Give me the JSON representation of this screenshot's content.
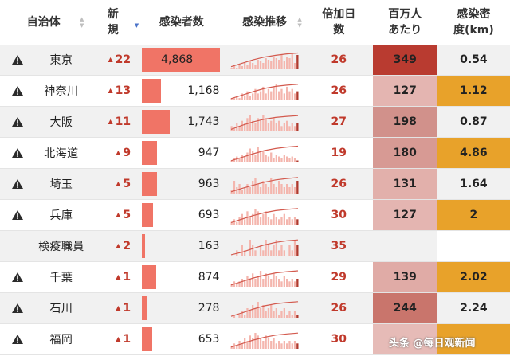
{
  "headers": {
    "pref": "自治体",
    "new_line1": "新",
    "new_line2": "規",
    "cases": "感染者数",
    "trend": "感染推移",
    "doubling_line1": "倍加日",
    "doubling_line2": "数",
    "per_million_line1": "百万人",
    "per_million_line2": "あたり",
    "density_line1": "感染密",
    "density_line2": "度(km)"
  },
  "colors": {
    "bar": "#f07466",
    "new_red": "#c0392b",
    "density_orange": "#e8a22a",
    "spark_bar": "#f4b6ae",
    "spark_line": "#d35a4e"
  },
  "rows": [
    {
      "warn": true,
      "pref": "東京",
      "new": "22",
      "cases": "4,868",
      "cases_value": 4868,
      "doubling": "26",
      "per_million": "349",
      "per_million_color": "#b93b30",
      "density": "0.54",
      "trend_series": [
        1,
        2,
        1,
        3,
        2,
        4,
        3,
        5,
        4,
        3,
        6,
        5,
        4,
        7,
        6,
        5,
        8,
        7,
        6,
        9,
        5,
        8,
        7,
        10,
        4,
        9
      ],
      "trend_line": [
        0.15,
        0.35,
        0.55,
        0.7,
        0.8,
        0.88,
        0.93
      ]
    },
    {
      "warn": true,
      "pref": "神奈川",
      "new": "13",
      "cases": "1,168",
      "cases_value": 1168,
      "doubling": "26",
      "per_million": "127",
      "per_million_color": "#e4b5b1",
      "density": "1.12",
      "trend_series": [
        1,
        1,
        2,
        1,
        3,
        2,
        4,
        2,
        3,
        5,
        3,
        4,
        6,
        3,
        5,
        4,
        6,
        7,
        4,
        5,
        3,
        6,
        4,
        5,
        3,
        4
      ],
      "trend_line": [
        0.1,
        0.3,
        0.5,
        0.68,
        0.8,
        0.87,
        0.92
      ]
    },
    {
      "warn": true,
      "pref": "大阪",
      "new": "11",
      "cases": "1,743",
      "cases_value": 1743,
      "doubling": "27",
      "per_million": "198",
      "per_million_color": "#d1918b",
      "density": "0.87",
      "trend_series": [
        2,
        1,
        3,
        2,
        4,
        3,
        5,
        6,
        4,
        3,
        5,
        4,
        6,
        5,
        3,
        4,
        5,
        3,
        4,
        2,
        3,
        4,
        2,
        3,
        2,
        3
      ],
      "trend_line": [
        0.12,
        0.35,
        0.55,
        0.7,
        0.8,
        0.86,
        0.9
      ]
    },
    {
      "warn": true,
      "pref": "北海道",
      "new": "9",
      "cases": "947",
      "cases_value": 947,
      "doubling": "19",
      "per_million": "180",
      "per_million_color": "#d79a94",
      "density": "4.86",
      "trend_series": [
        1,
        2,
        3,
        2,
        4,
        3,
        5,
        7,
        6,
        4,
        8,
        5,
        6,
        4,
        3,
        5,
        2,
        4,
        3,
        2,
        4,
        3,
        2,
        3,
        2,
        1
      ],
      "trend_line": [
        0.1,
        0.3,
        0.5,
        0.68,
        0.8,
        0.88,
        0.93
      ]
    },
    {
      "warn": true,
      "pref": "埼玉",
      "new": "5",
      "cases": "963",
      "cases_value": 963,
      "doubling": "26",
      "per_million": "131",
      "per_million_color": "#e2b0ab",
      "density": "1.64",
      "trend_series": [
        1,
        4,
        2,
        3,
        1,
        2,
        3,
        2,
        4,
        5,
        3,
        2,
        4,
        3,
        2,
        5,
        3,
        2,
        4,
        3,
        2,
        3,
        2,
        3,
        2,
        4
      ],
      "trend_line": [
        0.1,
        0.3,
        0.48,
        0.65,
        0.78,
        0.86,
        0.92
      ]
    },
    {
      "warn": true,
      "pref": "兵庫",
      "new": "5",
      "cases": "693",
      "cases_value": 693,
      "doubling": "30",
      "per_million": "127",
      "per_million_color": "#e4b5b1",
      "density": "2",
      "trend_series": [
        1,
        2,
        1,
        3,
        4,
        2,
        5,
        3,
        4,
        6,
        5,
        3,
        4,
        5,
        3,
        2,
        4,
        3,
        2,
        3,
        4,
        2,
        3,
        2,
        3,
        2
      ],
      "trend_line": [
        0.12,
        0.32,
        0.52,
        0.68,
        0.8,
        0.87,
        0.92
      ]
    },
    {
      "warn": false,
      "pref": "検疫職員",
      "new": "2",
      "cases": "163",
      "cases_value": 163,
      "doubling": "35",
      "per_million": "",
      "per_million_color": "",
      "density": "",
      "trend_series": [
        0,
        0,
        1,
        0,
        2,
        1,
        0,
        3,
        2,
        1,
        0,
        2,
        1,
        3,
        2,
        1,
        2,
        3,
        1,
        2,
        1,
        0,
        2,
        1,
        3,
        2
      ],
      "trend_line": [
        0.05,
        0.2,
        0.42,
        0.62,
        0.76,
        0.85,
        0.9
      ]
    },
    {
      "warn": true,
      "pref": "千葉",
      "new": "1",
      "cases": "874",
      "cases_value": 874,
      "doubling": "29",
      "per_million": "139",
      "per_million_color": "#e0aba6",
      "density": "2.02",
      "trend_series": [
        1,
        2,
        1,
        2,
        3,
        2,
        4,
        3,
        5,
        3,
        4,
        6,
        3,
        5,
        4,
        3,
        5,
        4,
        3,
        2,
        4,
        3,
        2,
        3,
        2,
        3
      ],
      "trend_line": [
        0.1,
        0.3,
        0.5,
        0.66,
        0.79,
        0.86,
        0.91
      ]
    },
    {
      "warn": true,
      "pref": "石川",
      "new": "1",
      "cases": "278",
      "cases_value": 278,
      "doubling": "26",
      "per_million": "244",
      "per_million_color": "#c9756c",
      "density": "2.24",
      "trend_series": [
        0,
        1,
        0,
        1,
        2,
        1,
        3,
        2,
        4,
        3,
        5,
        3,
        4,
        2,
        3,
        4,
        2,
        3,
        1,
        2,
        3,
        1,
        2,
        1,
        2,
        1
      ],
      "trend_line": [
        0.08,
        0.28,
        0.5,
        0.68,
        0.8,
        0.87,
        0.92
      ]
    },
    {
      "warn": true,
      "pref": "福岡",
      "new": "1",
      "cases": "653",
      "cases_value": 653,
      "doubling": "30",
      "per_million": "",
      "per_million_color": "#e6bbb7",
      "density": "",
      "trend_series": [
        1,
        2,
        1,
        3,
        2,
        4,
        3,
        5,
        4,
        6,
        5,
        4,
        3,
        5,
        4,
        3,
        4,
        2,
        3,
        2,
        3,
        2,
        3,
        2,
        3,
        2
      ],
      "trend_line": [
        0.1,
        0.3,
        0.5,
        0.66,
        0.78,
        0.85,
        0.9
      ]
    }
  ],
  "watermark": "头条 @每日观新闻"
}
